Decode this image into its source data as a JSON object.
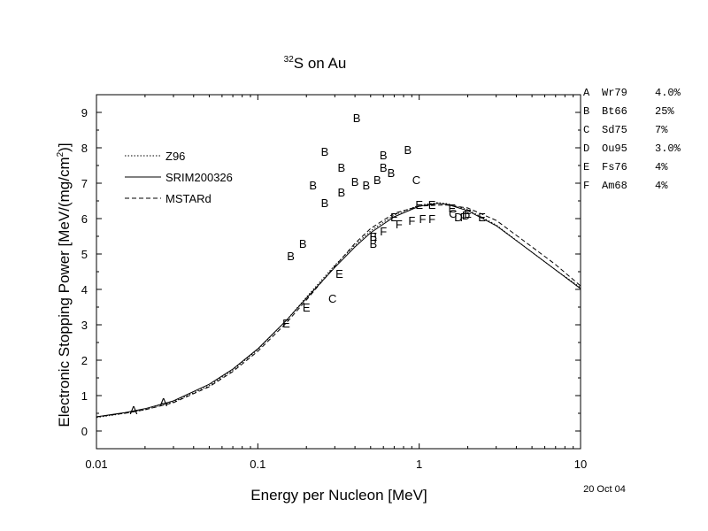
{
  "chart_data": {
    "type": "line",
    "title_superscript": "32",
    "title_main": "S on Au",
    "xlabel": "Energy per Nucleon [MeV]",
    "ylabel_main": "Electronic Stopping Power [MeV/(mg/cm",
    "ylabel_sup": "2",
    "ylabel_end": ")]",
    "x_scale": "log",
    "xlim": [
      0.01,
      10
    ],
    "ylim": [
      -0.5,
      9.5
    ],
    "x_ticks": [
      {
        "value": 0.01,
        "label": "0.01"
      },
      {
        "value": 0.1,
        "label": "0.1"
      },
      {
        "value": 1,
        "label": "1"
      },
      {
        "value": 10,
        "label": "10"
      }
    ],
    "y_ticks": [
      0,
      1,
      2,
      3,
      4,
      5,
      6,
      7,
      8,
      9
    ],
    "date_label": "20 Oct 04",
    "legend_placement": "upper-left",
    "series": [
      {
        "name": "Z96",
        "style": "dotted",
        "x": [
          0.01,
          0.015,
          0.02,
          0.03,
          0.05,
          0.07,
          0.1,
          0.15,
          0.2,
          0.3,
          0.4,
          0.5,
          0.7,
          1.0,
          1.3,
          1.5,
          2.0,
          3.0,
          5.0,
          7.0,
          10.0
        ],
        "y": [
          0.38,
          0.5,
          0.6,
          0.82,
          1.28,
          1.72,
          2.3,
          3.12,
          3.78,
          4.68,
          5.25,
          5.65,
          6.1,
          6.38,
          6.45,
          6.42,
          6.25,
          5.82,
          5.05,
          4.55,
          4.05
        ]
      },
      {
        "name": "SRIM200326",
        "style": "solid",
        "x": [
          0.01,
          0.015,
          0.02,
          0.03,
          0.05,
          0.07,
          0.1,
          0.15,
          0.2,
          0.3,
          0.4,
          0.5,
          0.7,
          1.0,
          1.3,
          1.5,
          2.0,
          3.0,
          5.0,
          7.0,
          10.0
        ],
        "y": [
          0.4,
          0.52,
          0.63,
          0.85,
          1.32,
          1.75,
          2.32,
          3.12,
          3.75,
          4.62,
          5.2,
          5.6,
          6.05,
          6.35,
          6.43,
          6.4,
          6.22,
          5.8,
          5.05,
          4.55,
          4.02
        ]
      },
      {
        "name": "MSTARd",
        "style": "dashed",
        "x": [
          0.01,
          0.015,
          0.02,
          0.03,
          0.05,
          0.07,
          0.1,
          0.15,
          0.2,
          0.3,
          0.4,
          0.5,
          0.7,
          1.0,
          1.3,
          1.5,
          2.0,
          3.0,
          5.0,
          7.0,
          10.0
        ],
        "y": [
          0.4,
          0.5,
          0.6,
          0.8,
          1.25,
          1.68,
          2.25,
          3.05,
          3.7,
          4.65,
          5.3,
          5.72,
          6.15,
          6.35,
          6.38,
          6.38,
          6.3,
          5.95,
          5.2,
          4.7,
          4.1
        ]
      }
    ],
    "points": [
      {
        "label": "A",
        "x": 0.017,
        "y": 0.6
      },
      {
        "label": "A",
        "x": 0.026,
        "y": 0.82
      },
      {
        "label": "B",
        "x": 0.16,
        "y": 4.95
      },
      {
        "label": "B",
        "x": 0.19,
        "y": 5.3
      },
      {
        "label": "B",
        "x": 0.22,
        "y": 6.95
      },
      {
        "label": "B",
        "x": 0.26,
        "y": 6.45
      },
      {
        "label": "B",
        "x": 0.26,
        "y": 7.9
      },
      {
        "label": "B",
        "x": 0.33,
        "y": 7.45
      },
      {
        "label": "B",
        "x": 0.33,
        "y": 6.75
      },
      {
        "label": "B",
        "x": 0.4,
        "y": 7.05
      },
      {
        "label": "B",
        "x": 0.41,
        "y": 8.85
      },
      {
        "label": "B",
        "x": 0.47,
        "y": 6.95
      },
      {
        "label": "B",
        "x": 0.55,
        "y": 7.1
      },
      {
        "label": "B",
        "x": 0.6,
        "y": 7.8
      },
      {
        "label": "B",
        "x": 0.6,
        "y": 7.45
      },
      {
        "label": "B",
        "x": 0.67,
        "y": 7.3
      },
      {
        "label": "B",
        "x": 0.85,
        "y": 7.95
      },
      {
        "label": "B",
        "x": 0.52,
        "y": 5.3
      },
      {
        "label": "B",
        "x": 0.52,
        "y": 5.5
      },
      {
        "label": "C",
        "x": 0.29,
        "y": 3.75
      },
      {
        "label": "C",
        "x": 0.96,
        "y": 7.1
      },
      {
        "label": "C",
        "x": 1.62,
        "y": 6.15
      },
      {
        "label": "D",
        "x": 1.75,
        "y": 6.05
      },
      {
        "label": "D",
        "x": 1.95,
        "y": 6.1
      },
      {
        "label": "E",
        "x": 0.15,
        "y": 3.05
      },
      {
        "label": "E",
        "x": 0.2,
        "y": 3.5
      },
      {
        "label": "E",
        "x": 0.32,
        "y": 4.45
      },
      {
        "label": "E",
        "x": 0.52,
        "y": 5.5
      },
      {
        "label": "E",
        "x": 0.7,
        "y": 6.05
      },
      {
        "label": "E",
        "x": 1.0,
        "y": 6.4
      },
      {
        "label": "E",
        "x": 1.2,
        "y": 6.4
      },
      {
        "label": "E",
        "x": 1.6,
        "y": 6.3
      },
      {
        "label": "E",
        "x": 2.0,
        "y": 6.15
      },
      {
        "label": "E",
        "x": 2.45,
        "y": 6.05
      },
      {
        "label": "F",
        "x": 0.6,
        "y": 5.65
      },
      {
        "label": "F",
        "x": 0.75,
        "y": 5.85
      },
      {
        "label": "F",
        "x": 0.9,
        "y": 5.95
      },
      {
        "label": "F",
        "x": 1.05,
        "y": 6.0
      },
      {
        "label": "F",
        "x": 1.2,
        "y": 6.0
      },
      {
        "label": "F",
        "x": 1.88,
        "y": 6.05
      }
    ],
    "references": [
      {
        "letter": "A",
        "name": "Wr79",
        "error": "4.0%"
      },
      {
        "letter": "B",
        "name": "Bt66",
        "error": "25%"
      },
      {
        "letter": "C",
        "name": "Sd75",
        "error": "7%"
      },
      {
        "letter": "D",
        "name": "Ou95",
        "error": "3.0%"
      },
      {
        "letter": "E",
        "name": "Fs76",
        "error": "4%"
      },
      {
        "letter": "F",
        "name": "Am68",
        "error": "4%"
      }
    ]
  }
}
